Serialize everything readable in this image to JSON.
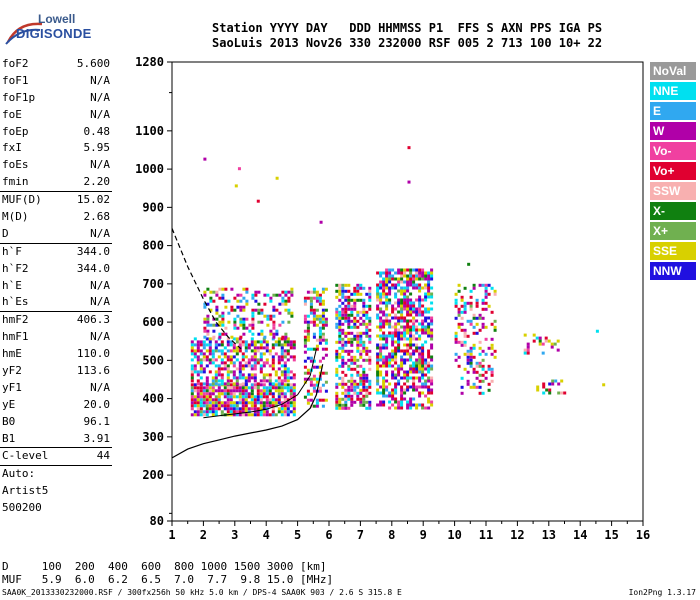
{
  "logo": {
    "line1": "Lowell",
    "line2": "DIGISONDE"
  },
  "header": {
    "line1": "Station YYYY DAY   DDD HHMMSS P1  FFS S AXN PPS IGA PS",
    "line2": "SaoLuis 2013 Nov26 330 232000 RSF 005 2 713 100 10+ 22"
  },
  "params_group1": [
    {
      "label": "foF2",
      "value": "5.600"
    },
    {
      "label": "foF1",
      "value": "N/A"
    },
    {
      "label": "foF1p",
      "value": "N/A"
    },
    {
      "label": "foE",
      "value": "N/A"
    },
    {
      "label": "foEp",
      "value": "0.48"
    },
    {
      "label": "fxI",
      "value": "5.95"
    },
    {
      "label": "foEs",
      "value": "N/A"
    },
    {
      "label": "fmin",
      "value": "2.20"
    }
  ],
  "params_group2": [
    {
      "label": "MUF(D)",
      "value": "15.02"
    },
    {
      "label": "M(D)",
      "value": "2.68"
    },
    {
      "label": "D",
      "value": "N/A"
    }
  ],
  "params_group3": [
    {
      "label": "h`F",
      "value": "344.0"
    },
    {
      "label": "h`F2",
      "value": "344.0"
    },
    {
      "label": "h`E",
      "value": "N/A"
    },
    {
      "label": "h`Es",
      "value": "N/A"
    }
  ],
  "params_group4": [
    {
      "label": "hmF2",
      "value": "406.3"
    },
    {
      "label": "hmF1",
      "value": "N/A"
    },
    {
      "label": "hmE",
      "value": "110.0"
    },
    {
      "label": "yF2",
      "value": "113.6"
    },
    {
      "label": "yF1",
      "value": "N/A"
    },
    {
      "label": "yE",
      "value": "20.0"
    },
    {
      "label": "B0",
      "value": "96.1"
    },
    {
      "label": "B1",
      "value": "3.91"
    }
  ],
  "clevel": {
    "label": "C-level",
    "value": "44"
  },
  "auto_lines": [
    "Auto:",
    "Artist5",
    "500200"
  ],
  "legend": [
    {
      "label": "NoVal",
      "color": "#9a9a9a"
    },
    {
      "label": "NNE",
      "color": "#00e0f0"
    },
    {
      "label": "E",
      "color": "#30a8f0"
    },
    {
      "label": "W",
      "color": "#b000a8"
    },
    {
      "label": "Vo-",
      "color": "#f040a0"
    },
    {
      "label": "Vo+",
      "color": "#e00030"
    },
    {
      "label": "SSW",
      "color": "#f8b0b0"
    },
    {
      "label": "X-",
      "color": "#108010"
    },
    {
      "label": "X+",
      "color": "#70b050"
    },
    {
      "label": "SSE",
      "color": "#d8d000"
    },
    {
      "label": "NNW",
      "color": "#2010e0"
    }
  ],
  "d_table": {
    "row1": "D     100  200  400  600  800 1000 1500 3000 [km]",
    "row2": "MUF   5.9  6.0  6.2  6.5  7.0  7.7  9.8 15.0 [MHz]"
  },
  "footer": {
    "left": "SAA0K_2013330232000.RSF / 300fx256h 50 kHz 5.0 km / DPS-4 SAA0K 903 / 2.6 S 315.8 E",
    "right": "Ion2Png 1.3.17"
  },
  "chart_data": {
    "type": "scatter",
    "xlim": [
      1,
      16
    ],
    "ylim": [
      80,
      1280
    ],
    "x_ticks": [
      1,
      2,
      3,
      4,
      5,
      6,
      7,
      8,
      9,
      10,
      11,
      12,
      13,
      14,
      15,
      16
    ],
    "y_ticks": [
      80,
      200,
      300,
      400,
      500,
      600,
      700,
      800,
      900,
      1000,
      1100,
      1280
    ],
    "grid": false,
    "legend_placement": "right",
    "echo_blocks": [
      {
        "x": [
          1.6,
          4.9
        ],
        "y": [
          355,
          440
        ],
        "density": 0.85
      },
      {
        "x": [
          1.6,
          4.9
        ],
        "y": [
          440,
          560
        ],
        "density": 0.6
      },
      {
        "x": [
          2.0,
          4.8
        ],
        "y": [
          560,
          690
        ],
        "density": 0.35
      },
      {
        "x": [
          5.2,
          5.9
        ],
        "y": [
          380,
          690
        ],
        "density": 0.5
      },
      {
        "x": [
          6.2,
          7.3
        ],
        "y": [
          375,
          700
        ],
        "density": 0.6
      },
      {
        "x": [
          7.5,
          9.3
        ],
        "y": [
          375,
          740
        ],
        "density": 0.65
      },
      {
        "x": [
          10.0,
          11.3
        ],
        "y": [
          410,
          700
        ],
        "density": 0.3
      },
      {
        "x": [
          12.2,
          13.3
        ],
        "y": [
          520,
          570
        ],
        "density": 0.35
      },
      {
        "x": [
          12.6,
          13.5
        ],
        "y": [
          415,
          450
        ],
        "density": 0.3
      }
    ],
    "scattered_points": [
      {
        "x": 2.0,
        "y": 1030
      },
      {
        "x": 3.0,
        "y": 960
      },
      {
        "x": 3.7,
        "y": 920
      },
      {
        "x": 4.3,
        "y": 980
      },
      {
        "x": 8.5,
        "y": 1060
      },
      {
        "x": 8.5,
        "y": 970
      },
      {
        "x": 5.7,
        "y": 865
      },
      {
        "x": 14.5,
        "y": 580
      },
      {
        "x": 14.7,
        "y": 440
      },
      {
        "x": 10.4,
        "y": 755
      },
      {
        "x": 3.1,
        "y": 1005
      }
    ],
    "profile_curve": [
      {
        "x": 1.0,
        "y": 245
      },
      {
        "x": 1.5,
        "y": 268
      },
      {
        "x": 2.0,
        "y": 282
      },
      {
        "x": 2.5,
        "y": 292
      },
      {
        "x": 3.0,
        "y": 302
      },
      {
        "x": 3.5,
        "y": 310
      },
      {
        "x": 4.0,
        "y": 318
      },
      {
        "x": 4.5,
        "y": 328
      },
      {
        "x": 5.0,
        "y": 345
      },
      {
        "x": 5.4,
        "y": 375
      },
      {
        "x": 5.6,
        "y": 410
      },
      {
        "x": 5.8,
        "y": 490
      }
    ],
    "dashed_trace": [
      {
        "x": 1.0,
        "y": 845
      },
      {
        "x": 1.5,
        "y": 745
      },
      {
        "x": 2.0,
        "y": 660
      },
      {
        "x": 2.4,
        "y": 600
      },
      {
        "x": 2.8,
        "y": 560
      },
      {
        "x": 3.2,
        "y": 530
      }
    ],
    "trace_curve": [
      {
        "x": 2.0,
        "y": 350
      },
      {
        "x": 2.5,
        "y": 355
      },
      {
        "x": 3.0,
        "y": 360
      },
      {
        "x": 3.5,
        "y": 365
      },
      {
        "x": 4.0,
        "y": 372
      },
      {
        "x": 4.5,
        "y": 385
      },
      {
        "x": 5.0,
        "y": 410
      },
      {
        "x": 5.4,
        "y": 460
      },
      {
        "x": 5.6,
        "y": 530
      }
    ]
  }
}
